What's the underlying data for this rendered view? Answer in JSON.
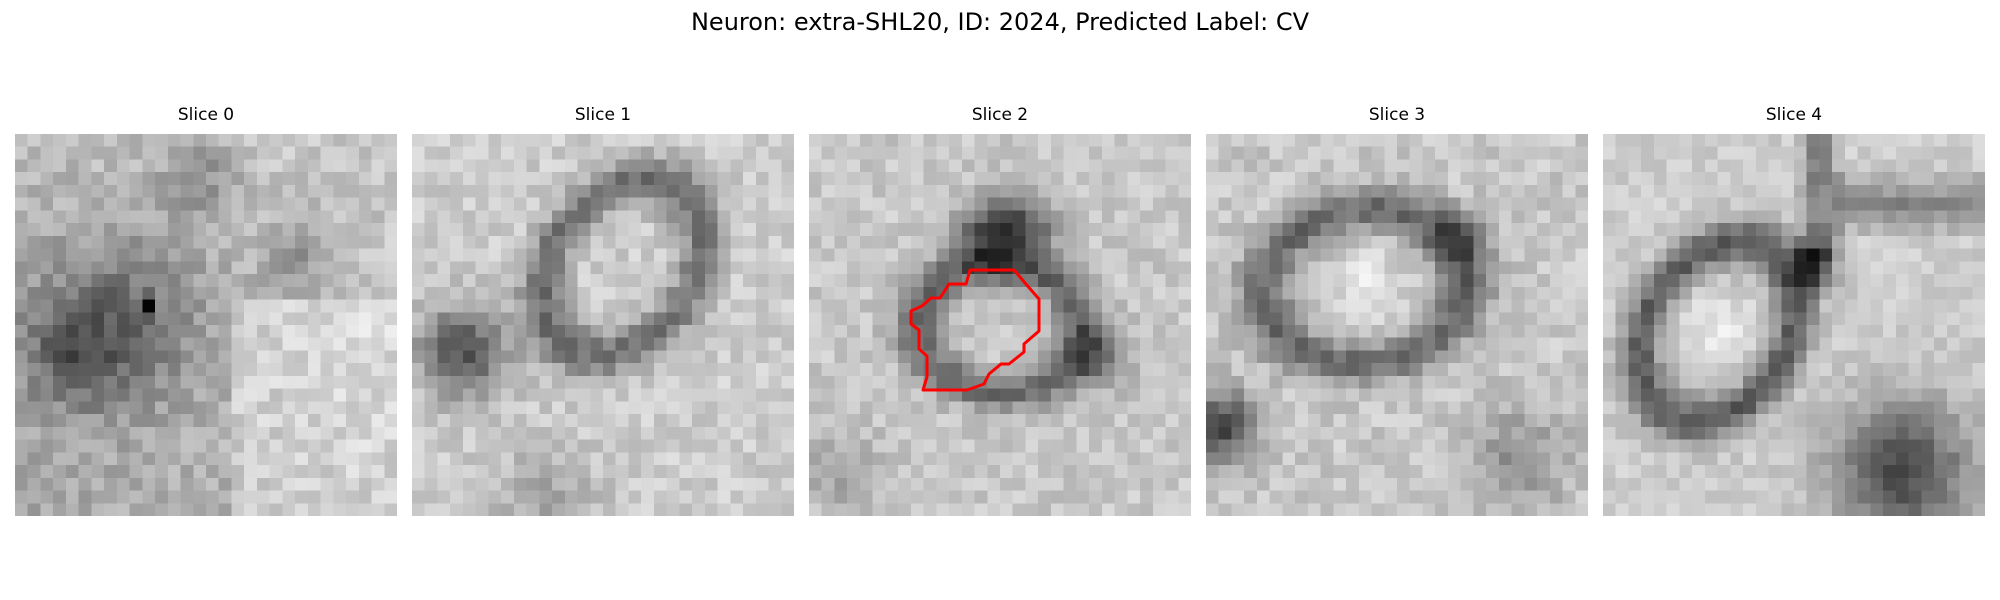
{
  "figure": {
    "title": "Neuron: extra-SHL20, ID: 2024, Predicted Label: CV"
  },
  "panels": [
    {
      "label": "Slice 0"
    },
    {
      "label": "Slice 1"
    },
    {
      "label": "Slice 2",
      "has_contour": true
    },
    {
      "label": "Slice 3"
    },
    {
      "label": "Slice 4"
    }
  ],
  "colors": {
    "contour": "#ff0000",
    "background": "#ffffff"
  },
  "image": {
    "colormap": "grayscale",
    "grid_cells": 30
  }
}
